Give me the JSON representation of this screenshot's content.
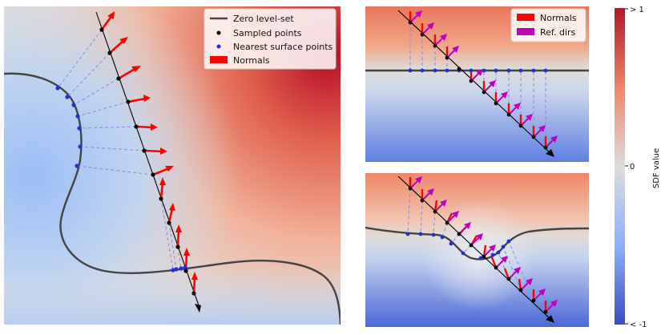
{
  "colorbar": {
    "label": "SDF value",
    "tick_top": "> 1",
    "tick_mid": "0",
    "tick_bottom": "< -1",
    "colors": {
      "high": "#b2182b",
      "zero": "#dddcdc",
      "low": "#3b4cc0"
    }
  },
  "panel_main": {
    "legend": [
      "Zero level-set",
      "Sampled points",
      "Nearest surface points",
      "Normals"
    ]
  },
  "panel_top_right": {
    "legend": [
      "Normals",
      "Ref. dirs"
    ]
  },
  "colors": {
    "zero_level_set": "#444444",
    "sampled_point": "#000000",
    "surface_point": "#1f2fd9",
    "normal_arrow": "#ff0000",
    "ref_dir_arrow": "#c000c0",
    "projection_line": "#8f8fe8"
  }
}
